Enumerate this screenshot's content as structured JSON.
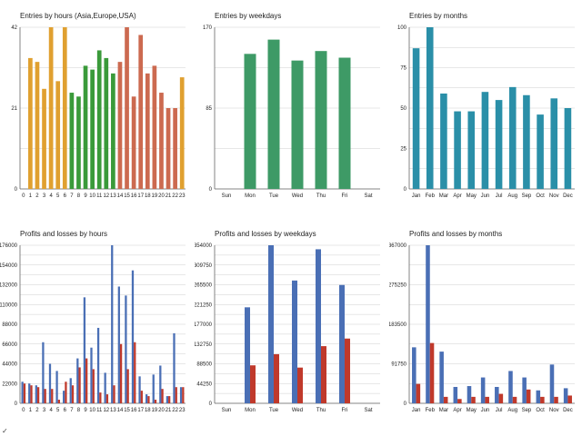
{
  "corner_mark": "✓",
  "chart_data": [
    {
      "id": "hours_entries",
      "type": "bar",
      "title": "Entries by hours (Asia,Europe,USA)",
      "categories": [
        "0",
        "1",
        "2",
        "3",
        "4",
        "5",
        "6",
        "7",
        "8",
        "9",
        "10",
        "11",
        "12",
        "13",
        "14",
        "15",
        "16",
        "17",
        "18",
        "19",
        "20",
        "21",
        "22",
        "23"
      ],
      "values": [
        0,
        34,
        33,
        26,
        42,
        28,
        42,
        25,
        24,
        32,
        31,
        36,
        34,
        30,
        33,
        42,
        24,
        40,
        30,
        32,
        25,
        21,
        21,
        29
      ],
      "bar_colors": [
        "#e0a030",
        "#e0a030",
        "#e0a030",
        "#e0a030",
        "#e0a030",
        "#e0a030",
        "#e0a030",
        "#3a9a3a",
        "#3a9a3a",
        "#3a9a3a",
        "#3a9a3a",
        "#3a9a3a",
        "#3a9a3a",
        "#3a9a3a",
        "#cc6a50",
        "#cc6a50",
        "#cc6a50",
        "#cc6a50",
        "#cc6a50",
        "#cc6a50",
        "#cc6a50",
        "#cc6a50",
        "#cc6a50",
        "#e0a030"
      ],
      "ylim": [
        0,
        42
      ],
      "yticks": [
        0,
        21,
        42
      ],
      "ytick_labels": [
        "0",
        "21",
        "42"
      ],
      "grid": true
    },
    {
      "id": "weekday_entries",
      "type": "bar",
      "title": "Entries by weekdays",
      "categories": [
        "Sun",
        "Mon",
        "Tue",
        "Wed",
        "Thu",
        "Fri",
        "Sat"
      ],
      "values": [
        0,
        142,
        157,
        135,
        145,
        138,
        0
      ],
      "bar_colors": [
        "#3e9a66"
      ],
      "ylim": [
        0,
        170
      ],
      "yticks": [
        0,
        85,
        170
      ],
      "ytick_labels": [
        "0",
        "85",
        "170"
      ],
      "grid": true
    },
    {
      "id": "month_entries",
      "type": "bar",
      "title": "Entries by months",
      "categories": [
        "Jan",
        "Feb",
        "Mar",
        "Apr",
        "May",
        "Jun",
        "Jul",
        "Aug",
        "Sep",
        "Oct",
        "Nov",
        "Dec"
      ],
      "values": [
        87,
        100,
        59,
        48,
        48,
        60,
        55,
        63,
        58,
        46,
        56,
        50
      ],
      "bar_colors": [
        "#2a8fa8"
      ],
      "ylim": [
        0,
        100
      ],
      "yticks": [
        0,
        25,
        50,
        75,
        100
      ],
      "ytick_labels": [
        "0",
        "25",
        "50",
        "75",
        "100"
      ],
      "grid": true
    },
    {
      "id": "hours_pl",
      "type": "bar",
      "title": "Profits and losses by hours",
      "categories": [
        "0",
        "1",
        "2",
        "3",
        "4",
        "5",
        "6",
        "7",
        "8",
        "9",
        "10",
        "11",
        "12",
        "13",
        "14",
        "15",
        "16",
        "17",
        "18",
        "19",
        "20",
        "21",
        "22",
        "23"
      ],
      "series": [
        {
          "name": "Profits",
          "color": "#4a6fb5",
          "values": [
            24000,
            22000,
            20000,
            68000,
            44000,
            36000,
            14000,
            28000,
            50000,
            118000,
            62000,
            84000,
            34000,
            176000,
            130000,
            120000,
            148000,
            30000,
            10000,
            32000,
            42000,
            8000,
            78000,
            18000
          ]
        },
        {
          "name": "Losses",
          "color": "#c0392b",
          "values": [
            22000,
            20000,
            18000,
            16000,
            16000,
            4000,
            24000,
            20000,
            40000,
            50000,
            38000,
            12000,
            10000,
            20000,
            66000,
            38000,
            68000,
            14000,
            8000,
            4000,
            16000,
            8000,
            18000,
            18000
          ]
        }
      ],
      "ylim": [
        0,
        176000
      ],
      "yticks": [
        0,
        22000,
        44000,
        66000,
        88000,
        110000,
        132000,
        154000,
        176000
      ],
      "ytick_labels": [
        "0",
        "22000",
        "44000",
        "66000",
        "88000",
        "110000",
        "132000",
        "154000",
        "176000"
      ],
      "grid": true
    },
    {
      "id": "weekday_pl",
      "type": "bar",
      "title": "Profits and losses by weekdays",
      "categories": [
        "Sun",
        "Mon",
        "Tue",
        "Wed",
        "Thu",
        "Fri",
        "Sat"
      ],
      "series": [
        {
          "name": "Profits",
          "color": "#4a6fb5",
          "values": [
            0,
            215000,
            354000,
            275000,
            345000,
            265000,
            0
          ]
        },
        {
          "name": "Losses",
          "color": "#c0392b",
          "values": [
            0,
            85000,
            110000,
            80000,
            128000,
            145000,
            0
          ]
        }
      ],
      "ylim": [
        0,
        354000
      ],
      "yticks": [
        0,
        44250,
        88500,
        132750,
        177000,
        221250,
        265500,
        309750,
        354000
      ],
      "ytick_labels": [
        "0",
        "44250",
        "88500",
        "132750",
        "177000",
        "221250",
        "265500",
        "309750",
        "354000"
      ],
      "grid": true
    },
    {
      "id": "month_pl",
      "type": "bar",
      "title": "Profits and losses by months",
      "categories": [
        "Jan",
        "Feb",
        "Mar",
        "Apr",
        "May",
        "Jun",
        "Jul",
        "Aug",
        "Sep",
        "Oct",
        "Nov",
        "Dec"
      ],
      "series": [
        {
          "name": "Profits",
          "color": "#4a6fb5",
          "values": [
            130000,
            367000,
            120000,
            38000,
            40000,
            60000,
            38000,
            75000,
            60000,
            30000,
            90000,
            35000
          ]
        },
        {
          "name": "Losses",
          "color": "#c0392b",
          "values": [
            45000,
            140000,
            15000,
            10000,
            15000,
            15000,
            22000,
            15000,
            32000,
            15000,
            15000,
            18000
          ]
        }
      ],
      "ylim": [
        0,
        367000
      ],
      "yticks": [
        0,
        91750,
        183500,
        275250,
        367000
      ],
      "ytick_labels": [
        "0",
        "91750",
        "183500",
        "275250",
        "367000"
      ],
      "grid": true
    }
  ]
}
